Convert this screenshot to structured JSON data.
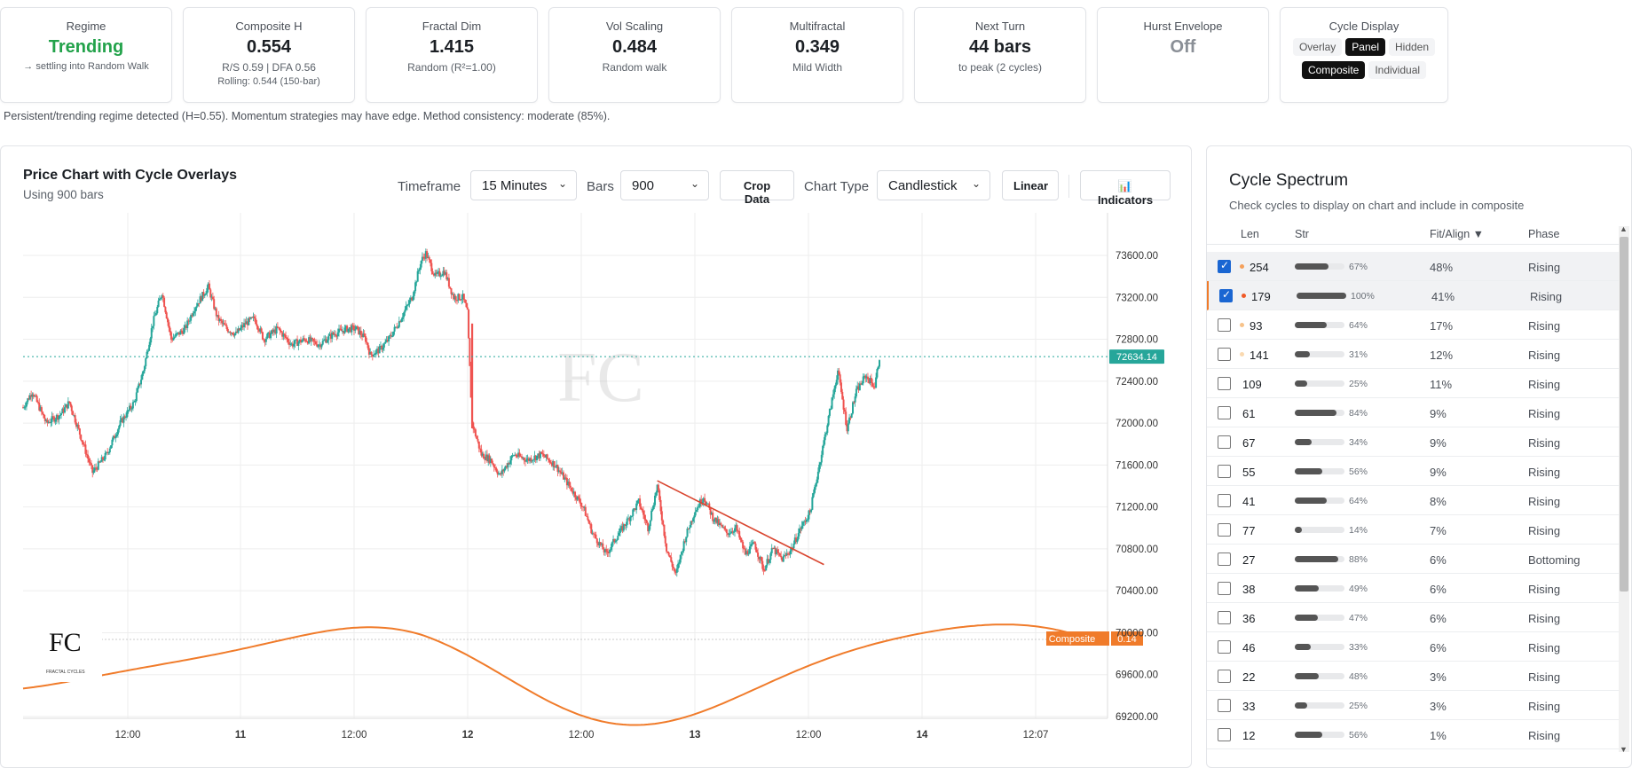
{
  "metrics": [
    {
      "label": "Regime",
      "value": "Trending",
      "value_color": "green",
      "sub": "→ settling into Random Walk",
      "sub2": ""
    },
    {
      "label": "Composite H",
      "value": "0.554",
      "sub": "R/S 0.59 | DFA 0.56",
      "sub2": "Rolling: 0.544 (150-bar)"
    },
    {
      "label": "Fractal Dim",
      "value": "1.415",
      "sub": "Random (R²=1.00)",
      "sub2": ""
    },
    {
      "label": "Vol Scaling",
      "value": "0.484",
      "sub": "Random walk",
      "sub2": ""
    },
    {
      "label": "Multifractal",
      "value": "0.349",
      "sub": "Mild Width",
      "sub2": ""
    },
    {
      "label": "Next Turn",
      "value": "44 bars",
      "sub": "to peak (2 cycles)",
      "sub2": ""
    },
    {
      "label": "Hurst Envelope",
      "value": "Off",
      "value_color": "gray",
      "sub": "",
      "sub2": ""
    }
  ],
  "cycle_display": {
    "label": "Cycle Display",
    "modes": [
      "Overlay",
      "Panel",
      "Hidden"
    ],
    "active_mode": "Panel",
    "views": [
      "Composite",
      "Individual"
    ],
    "active_view": "Composite"
  },
  "regime_note": "Persistent/trending regime detected (H=0.55). Momentum strategies may have edge. Method consistency: moderate (85%).",
  "chart_panel": {
    "title": "Price Chart with Cycle Overlays",
    "subtitle": "Using 900 bars",
    "timeframe_label": "Timeframe",
    "timeframe_value": "15 Minutes",
    "bars_label": "Bars",
    "bars_value": "900",
    "crop_button": "Crop Data",
    "chart_type_label": "Chart Type",
    "chart_type_value": "Candlestick",
    "scale_button": "Linear",
    "indicators_button": "📊 Indicators"
  },
  "chart_data": {
    "type": "candlestick",
    "y_ticks": [
      73600,
      73200,
      72800,
      72400,
      72000,
      71600,
      71200,
      70800,
      70400,
      70000,
      69600,
      69200
    ],
    "y_tick_labels": [
      "73600.00",
      "73200.00",
      "72800.00",
      "72400.00",
      "72000.00",
      "71600.00",
      "71200.00",
      "70800.00",
      "70400.00",
      "70000.00",
      "69600.00",
      "69200.00"
    ],
    "ylim": [
      69100,
      73800
    ],
    "x_tick_labels": [
      "12:00",
      "11",
      "12:00",
      "12",
      "12:00",
      "13",
      "12:00",
      "14",
      "12:07"
    ],
    "x_tick_bold": [
      false,
      true,
      false,
      true,
      false,
      true,
      false,
      true,
      false
    ],
    "last_price": 72634.14,
    "last_price_label": "72634.14",
    "composite_label": "Composite",
    "composite_value": "0.14",
    "composite_color": "#f07b2a",
    "up_color": "#26a69a",
    "down_color": "#ef5350",
    "price_path": [
      [
        0,
        72150
      ],
      [
        2,
        72300
      ],
      [
        5,
        72000
      ],
      [
        8,
        72080
      ],
      [
        10,
        72200
      ],
      [
        13,
        71800
      ],
      [
        15,
        71530
      ],
      [
        18,
        71700
      ],
      [
        21,
        72000
      ],
      [
        24,
        72200
      ],
      [
        26,
        72500
      ],
      [
        28,
        72950
      ],
      [
        30,
        73250
      ],
      [
        32,
        72800
      ],
      [
        35,
        72900
      ],
      [
        37,
        73100
      ],
      [
        40,
        73300
      ],
      [
        42,
        73000
      ],
      [
        44,
        72900
      ],
      [
        46,
        72850
      ],
      [
        48,
        72950
      ],
      [
        50,
        73000
      ],
      [
        52,
        72800
      ],
      [
        55,
        72900
      ],
      [
        58,
        72750
      ],
      [
        61,
        72800
      ],
      [
        64,
        72750
      ],
      [
        67,
        72850
      ],
      [
        70,
        72900
      ],
      [
        72,
        72900
      ],
      [
        74,
        72800
      ],
      [
        75,
        72650
      ],
      [
        77,
        72700
      ],
      [
        79,
        72800
      ],
      [
        81,
        72950
      ],
      [
        84,
        73200
      ],
      [
        86,
        73550
      ],
      [
        87,
        73620
      ],
      [
        89,
        73400
      ],
      [
        91,
        73450
      ],
      [
        93,
        73200
      ],
      [
        95,
        73200
      ],
      [
        96,
        73050
      ],
      [
        97,
        72000
      ],
      [
        99,
        71700
      ],
      [
        101,
        71650
      ],
      [
        103,
        71500
      ],
      [
        106,
        71700
      ],
      [
        109,
        71650
      ],
      [
        112,
        71700
      ],
      [
        115,
        71600
      ],
      [
        118,
        71400
      ],
      [
        121,
        71200
      ],
      [
        123,
        70950
      ],
      [
        126,
        70750
      ],
      [
        128,
        70900
      ],
      [
        131,
        71100
      ],
      [
        133,
        71250
      ],
      [
        135,
        71000
      ],
      [
        137,
        71400
      ],
      [
        139,
        70800
      ],
      [
        141,
        70550
      ],
      [
        143,
        70900
      ],
      [
        145,
        71150
      ],
      [
        147,
        71300
      ],
      [
        149,
        71100
      ],
      [
        152,
        70950
      ],
      [
        154,
        71000
      ],
      [
        156,
        70750
      ],
      [
        158,
        70850
      ],
      [
        160,
        70600
      ],
      [
        162,
        70800
      ],
      [
        164,
        70700
      ],
      [
        166,
        70800
      ],
      [
        168,
        71000
      ],
      [
        170,
        71150
      ],
      [
        172,
        71600
      ],
      [
        174,
        72050
      ],
      [
        176,
        72500
      ],
      [
        178,
        71950
      ],
      [
        180,
        72300
      ],
      [
        182,
        72450
      ],
      [
        184,
        72350
      ],
      [
        185,
        72634
      ]
    ],
    "trendline": {
      "from": [
        137,
        71450
      ],
      "to": [
        173,
        70650
      ]
    },
    "composite_curve": {
      "amplitude_days": "derived",
      "note": ""
    }
  },
  "spectrum": {
    "title": "Cycle Spectrum",
    "subtitle": "Check cycles to display on chart and include in composite",
    "headers": {
      "len": "Len",
      "str": "Str",
      "fit": "Fit/Align ▼",
      "phase": "Phase"
    },
    "rows": [
      {
        "len": "254",
        "str": 67,
        "str_label": "67%",
        "fit": "48%",
        "phase": "Rising",
        "checked": true,
        "dot": "#f5a05a",
        "selected": true,
        "accent": false
      },
      {
        "len": "179",
        "str": 100,
        "str_label": "100%",
        "fit": "41%",
        "phase": "Rising",
        "checked": true,
        "dot": "#f05a28",
        "selected": true,
        "accent": true
      },
      {
        "len": "93",
        "str": 64,
        "str_label": "64%",
        "fit": "17%",
        "phase": "Rising",
        "checked": false,
        "dot": "#f7c38a",
        "selected": false,
        "accent": false
      },
      {
        "len": "141",
        "str": 31,
        "str_label": "31%",
        "fit": "12%",
        "phase": "Rising",
        "checked": false,
        "dot": "#fad9b0",
        "selected": false,
        "accent": false
      },
      {
        "len": "109",
        "str": 25,
        "str_label": "25%",
        "fit": "11%",
        "phase": "Rising",
        "checked": false,
        "dot": "",
        "selected": false,
        "accent": false
      },
      {
        "len": "61",
        "str": 84,
        "str_label": "84%",
        "fit": "9%",
        "phase": "Rising",
        "checked": false,
        "dot": "",
        "selected": false,
        "accent": false
      },
      {
        "len": "67",
        "str": 34,
        "str_label": "34%",
        "fit": "9%",
        "phase": "Rising",
        "checked": false,
        "dot": "",
        "selected": false,
        "accent": false
      },
      {
        "len": "55",
        "str": 56,
        "str_label": "56%",
        "fit": "9%",
        "phase": "Rising",
        "checked": false,
        "dot": "",
        "selected": false,
        "accent": false
      },
      {
        "len": "41",
        "str": 64,
        "str_label": "64%",
        "fit": "8%",
        "phase": "Rising",
        "checked": false,
        "dot": "",
        "selected": false,
        "accent": false
      },
      {
        "len": "77",
        "str": 14,
        "str_label": "14%",
        "fit": "7%",
        "phase": "Rising",
        "checked": false,
        "dot": "",
        "selected": false,
        "accent": false
      },
      {
        "len": "27",
        "str": 88,
        "str_label": "88%",
        "fit": "6%",
        "phase": "Bottoming",
        "checked": false,
        "dot": "",
        "selected": false,
        "accent": false
      },
      {
        "len": "38",
        "str": 49,
        "str_label": "49%",
        "fit": "6%",
        "phase": "Rising",
        "checked": false,
        "dot": "",
        "selected": false,
        "accent": false
      },
      {
        "len": "36",
        "str": 47,
        "str_label": "47%",
        "fit": "6%",
        "phase": "Rising",
        "checked": false,
        "dot": "",
        "selected": false,
        "accent": false
      },
      {
        "len": "46",
        "str": 33,
        "str_label": "33%",
        "fit": "6%",
        "phase": "Rising",
        "checked": false,
        "dot": "",
        "selected": false,
        "accent": false
      },
      {
        "len": "22",
        "str": 48,
        "str_label": "48%",
        "fit": "3%",
        "phase": "Rising",
        "checked": false,
        "dot": "",
        "selected": false,
        "accent": false
      },
      {
        "len": "33",
        "str": 25,
        "str_label": "25%",
        "fit": "3%",
        "phase": "Rising",
        "checked": false,
        "dot": "",
        "selected": false,
        "accent": false
      },
      {
        "len": "12",
        "str": 56,
        "str_label": "56%",
        "fit": "1%",
        "phase": "Rising",
        "checked": false,
        "dot": "",
        "selected": false,
        "accent": false
      }
    ]
  }
}
